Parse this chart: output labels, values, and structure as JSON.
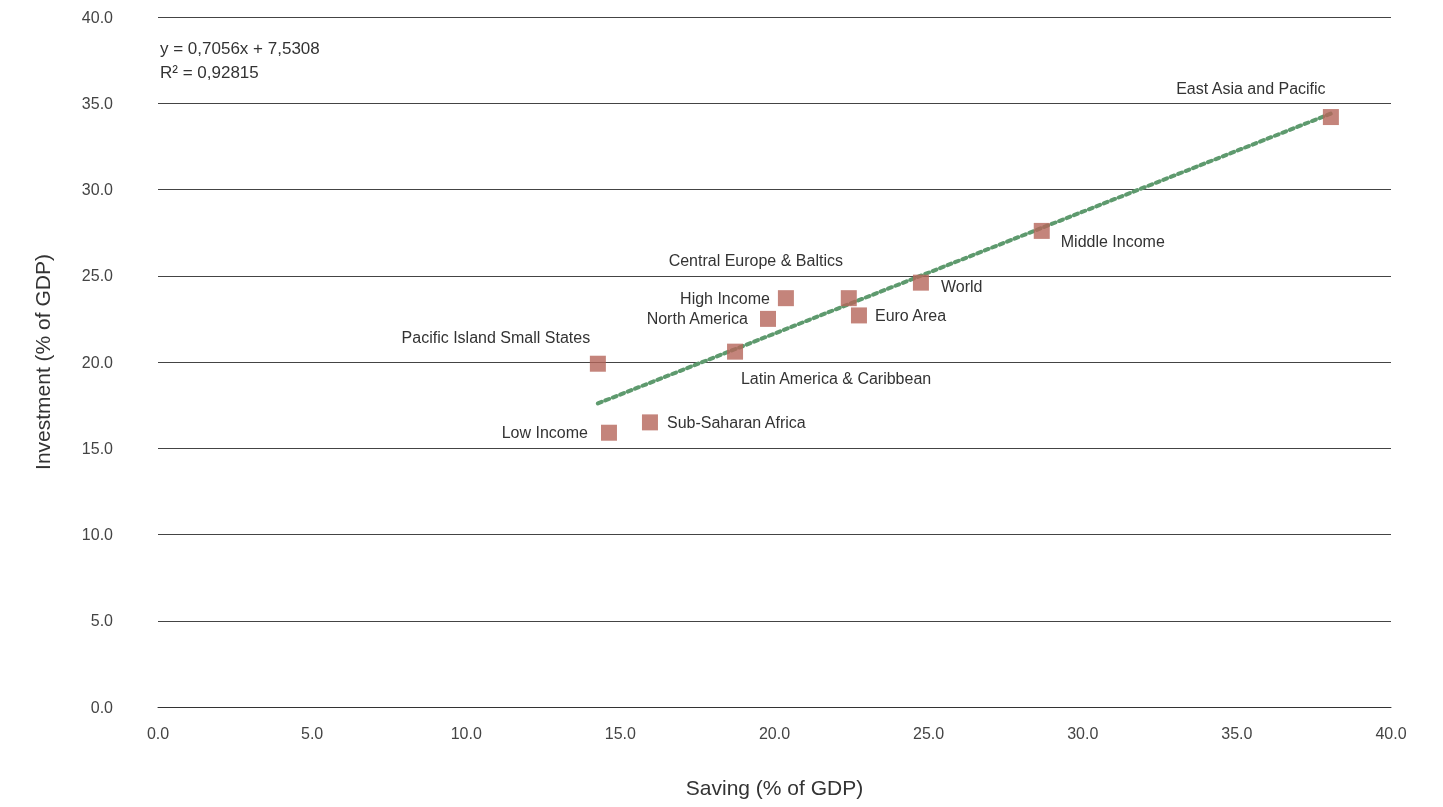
{
  "chart_data": {
    "type": "scatter",
    "xlabel": "Saving (% of GDP)",
    "ylabel": "Investment (% of GDP)",
    "series": [
      {
        "type": "scatter",
        "color": "#b5655a",
        "marker": "square",
        "x": [
          14.27,
          14.63,
          15.96,
          18.72,
          19.79,
          20.37,
          22.41,
          22.74,
          24.75,
          28.67,
          38.05
        ],
        "values": [
          19.9,
          15.9,
          16.5,
          20.6,
          22.5,
          23.7,
          23.7,
          22.7,
          24.6,
          27.6,
          34.2
        ]
      },
      {
        "type": "line",
        "color": "#5e9a6e",
        "line_style": "dotted",
        "marker": "none",
        "x": [
          14.27,
          38.05
        ],
        "values": [
          17.6,
          34.4
        ]
      }
    ],
    "annotations": [
      {
        "text": "Pacific Island Small States",
        "x": 14.27,
        "y": 19.9
      },
      {
        "text": "Low Income",
        "x": 14.63,
        "y": 15.9
      },
      {
        "text": "Sub-Saharan Africa",
        "x": 15.96,
        "y": 16.5
      },
      {
        "text": "Latin America & Caribbean",
        "x": 18.72,
        "y": 20.6
      },
      {
        "text": "North America",
        "x": 19.79,
        "y": 22.5
      },
      {
        "text": "High Income",
        "x": 20.37,
        "y": 23.7
      },
      {
        "text": "Central Europe & Baltics",
        "x": 22.41,
        "y": 23.7
      },
      {
        "text": "Euro Area",
        "x": 22.74,
        "y": 22.7
      },
      {
        "text": "World",
        "x": 24.75,
        "y": 24.6
      },
      {
        "text": "Middle Income",
        "x": 28.67,
        "y": 27.6
      },
      {
        "text": "East Asia and Pacific",
        "x": 38.05,
        "y": 34.2
      },
      "y = 0,7056x + 7,5308",
      "R² = 0,92815"
    ],
    "xlim": [
      0,
      40
    ],
    "xticks": [
      {
        "value": 0,
        "label": "0.0"
      },
      {
        "value": 5,
        "label": "5.0"
      },
      {
        "value": 10,
        "label": "10.0"
      },
      {
        "value": 15,
        "label": "15.0"
      },
      {
        "value": 20,
        "label": "20.0"
      },
      {
        "value": 25,
        "label": "25.0"
      },
      {
        "value": 30,
        "label": "30.0"
      },
      {
        "value": 35,
        "label": "35.0"
      },
      {
        "value": 40,
        "label": "40.0"
      }
    ],
    "ylim": [
      0,
      40
    ],
    "yticks": [
      {
        "value": 0,
        "label": "0.0"
      },
      {
        "value": 5,
        "label": "5.0"
      },
      {
        "value": 10,
        "label": "10.0"
      },
      {
        "value": 15,
        "label": "15.0"
      },
      {
        "value": 20,
        "label": "20.0"
      },
      {
        "value": 25,
        "label": "25.0"
      },
      {
        "value": 30,
        "label": "30.0"
      },
      {
        "value": 35,
        "label": "35.0"
      },
      {
        "value": 40,
        "label": "40.0"
      }
    ],
    "grid": "y"
  }
}
